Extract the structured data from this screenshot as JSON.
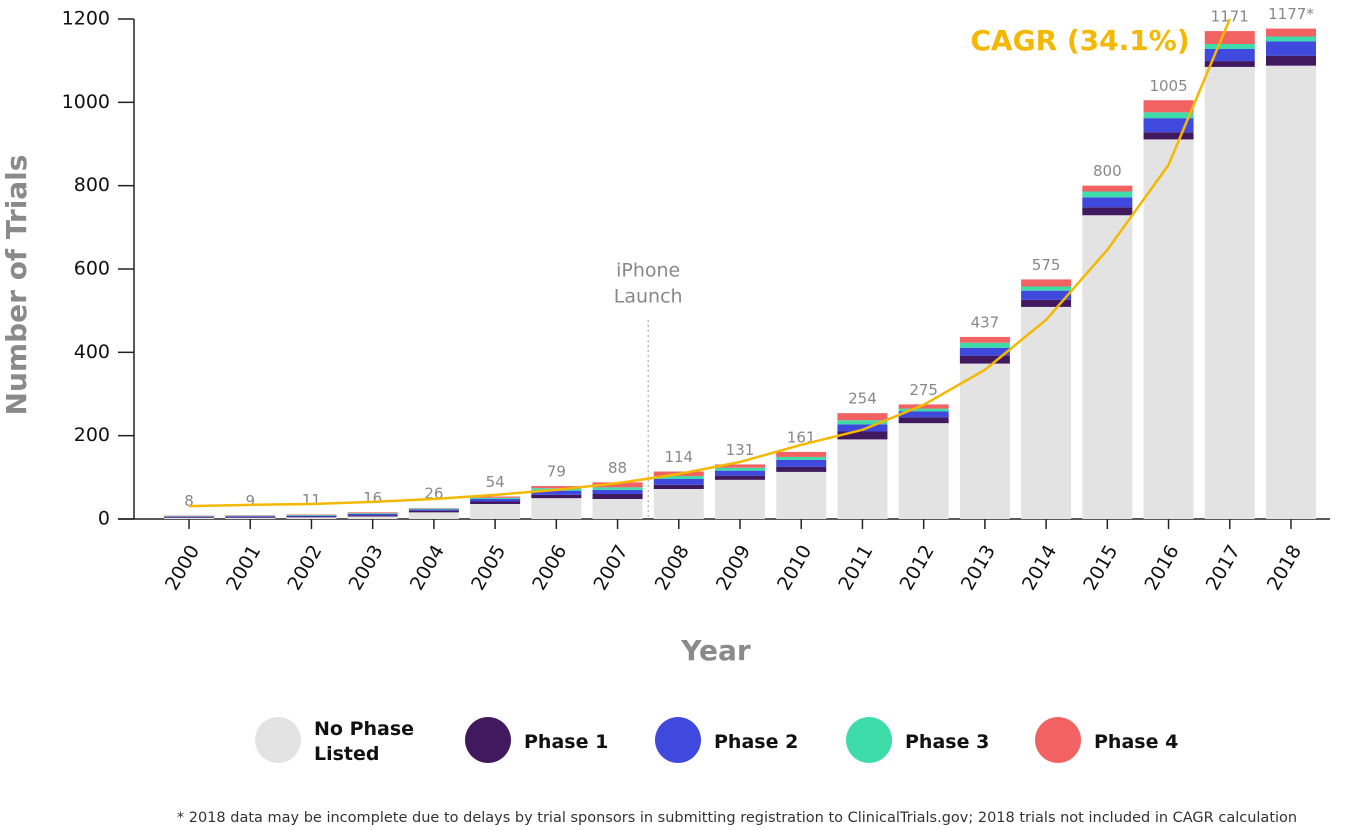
{
  "chart_data": {
    "type": "stacked-bar",
    "y_label": "Number of Trials",
    "x_label": "Year",
    "categories": [
      "2000",
      "2001",
      "2002",
      "2003",
      "2004",
      "2005",
      "2006",
      "2007",
      "2008",
      "2009",
      "2010",
      "2011",
      "2012",
      "2013",
      "2014",
      "2015",
      "2016",
      "2017",
      "2018"
    ],
    "series": [
      {
        "name": "No Phase Listed",
        "color": "#e3e3e3",
        "values": [
          3,
          3,
          4,
          6,
          16,
          36,
          50,
          48,
          72,
          94,
          113,
          191,
          230,
          373,
          509,
          729,
          911,
          1085,
          1088
        ]
      },
      {
        "name": "Phase 1",
        "color": "#41195f",
        "values": [
          2,
          2,
          2,
          3,
          4,
          6,
          8,
          12,
          10,
          10,
          12,
          19,
          14,
          19,
          17,
          19,
          17,
          14,
          24
        ]
      },
      {
        "name": "Phase 2",
        "color": "#4049de",
        "values": [
          1,
          2,
          2,
          3,
          3,
          6,
          10,
          10,
          14,
          12,
          17,
          17,
          14,
          19,
          22,
          24,
          34,
          29,
          34
        ]
      },
      {
        "name": "Phase 3",
        "color": "#3ddca9",
        "values": [
          1,
          1,
          2,
          2,
          2,
          3,
          6,
          6,
          7,
          7,
          7,
          10,
          7,
          12,
          10,
          14,
          14,
          12,
          12
        ]
      },
      {
        "name": "Phase 4",
        "color": "#f26262",
        "values": [
          1,
          1,
          1,
          2,
          1,
          3,
          5,
          12,
          11,
          8,
          12,
          17,
          10,
          14,
          17,
          14,
          29,
          31,
          19
        ]
      }
    ],
    "totals": {
      "values": [
        8,
        9,
        11,
        16,
        26,
        54,
        79,
        88,
        114,
        131,
        161,
        254,
        275,
        437,
        575,
        800,
        1005,
        1171,
        1177
      ],
      "value_labels": [
        "8",
        "9",
        "11",
        "16",
        "26",
        "54",
        "79",
        "88",
        "114",
        "131",
        "161",
        "254",
        "275",
        "437",
        "575",
        "800",
        "1005",
        "1171",
        "1177*"
      ]
    },
    "trend": {
      "name": "CAGR (34.1%)",
      "color": "#f5b800",
      "values": [
        31,
        34,
        36,
        41,
        48,
        58,
        70,
        86,
        108,
        137,
        178,
        214,
        274,
        358,
        478,
        646,
        850,
        1200,
        null
      ]
    },
    "annotation": {
      "text": [
        "iPhone",
        "Launch"
      ]
    },
    "ylim": [
      0,
      1200
    ],
    "yticks": [
      0,
      200,
      400,
      600,
      800,
      1000,
      1200
    ],
    "footnote": "* 2018 data may be incomplete due to delays by trial sponsors in submitting registration to ClinicalTrials.gov; 2018 trials not included in CAGR calculation"
  }
}
